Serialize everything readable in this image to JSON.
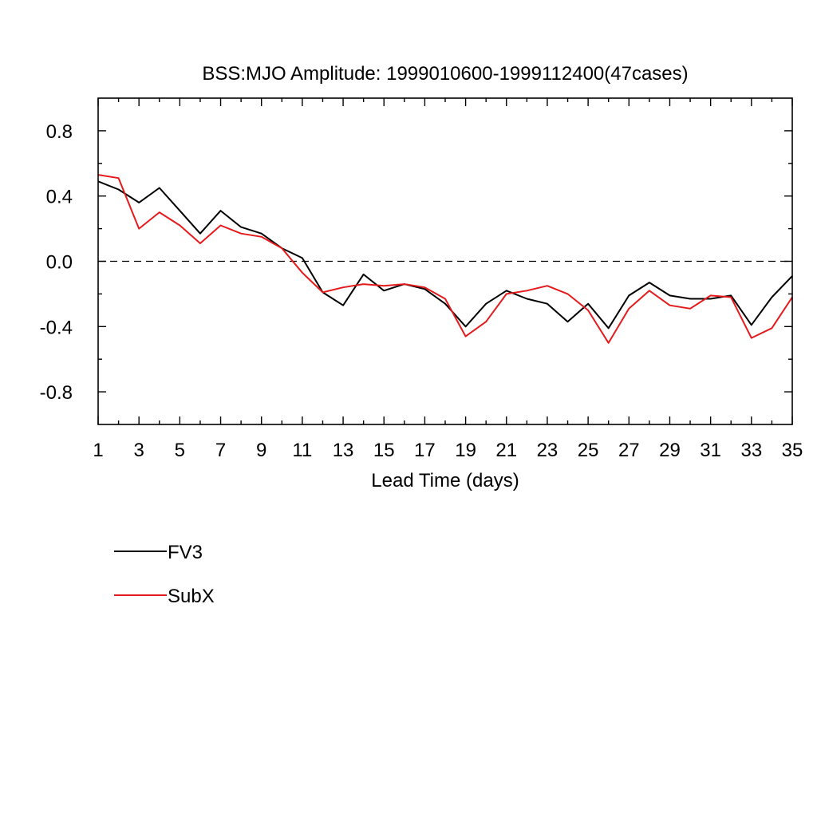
{
  "chart_data": {
    "type": "line",
    "title": "BSS:MJO Amplitude: 1999010600-1999112400(47cases)",
    "xlabel": "Lead Time (days)",
    "ylabel": "",
    "xlim": [
      1,
      35
    ],
    "ylim": [
      -1.0,
      1.0
    ],
    "x": [
      1,
      2,
      3,
      4,
      5,
      6,
      7,
      8,
      9,
      10,
      11,
      12,
      13,
      14,
      15,
      16,
      17,
      18,
      19,
      20,
      21,
      22,
      23,
      24,
      25,
      26,
      27,
      28,
      29,
      30,
      31,
      32,
      33,
      34,
      35
    ],
    "x_ticks": [
      "1",
      "3",
      "5",
      "7",
      "9",
      "11",
      "13",
      "15",
      "17",
      "19",
      "21",
      "23",
      "25",
      "27",
      "29",
      "31",
      "33",
      "35"
    ],
    "y_ticks": [
      "0.8",
      "0.4",
      "0.0",
      "-0.4",
      "-0.8"
    ],
    "reference_line": {
      "y": 0.0,
      "style": "dashed"
    },
    "grid": false,
    "legend_position": "below-left",
    "series": [
      {
        "name": "FV3",
        "color": "#000000",
        "values": [
          0.49,
          0.44,
          0.36,
          0.45,
          0.31,
          0.17,
          0.31,
          0.21,
          0.17,
          0.08,
          0.02,
          -0.19,
          -0.27,
          -0.08,
          -0.18,
          -0.14,
          -0.17,
          -0.26,
          -0.4,
          -0.26,
          -0.18,
          -0.23,
          -0.26,
          -0.37,
          -0.26,
          -0.41,
          -0.21,
          -0.13,
          -0.21,
          -0.23,
          -0.23,
          -0.21,
          -0.39,
          -0.22,
          -0.09
        ]
      },
      {
        "name": "SubX",
        "color": "#e41a1c",
        "values": [
          0.53,
          0.51,
          0.2,
          0.3,
          0.22,
          0.11,
          0.22,
          0.17,
          0.15,
          0.08,
          -0.07,
          -0.19,
          -0.16,
          -0.14,
          -0.15,
          -0.14,
          -0.16,
          -0.23,
          -0.46,
          -0.37,
          -0.2,
          -0.18,
          -0.15,
          -0.2,
          -0.3,
          -0.5,
          -0.29,
          -0.18,
          -0.27,
          -0.29,
          -0.21,
          -0.22,
          -0.47,
          -0.41,
          -0.22
        ]
      }
    ]
  }
}
